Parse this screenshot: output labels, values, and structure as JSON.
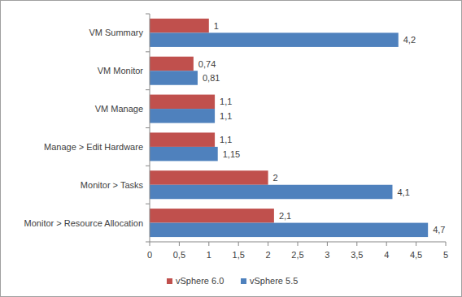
{
  "chart_data": {
    "type": "bar",
    "orientation": "horizontal",
    "categories": [
      "VM Summary",
      "VM Monitor",
      "VM Manage",
      "Manage > Edit Hardware",
      "Monitor > Tasks",
      "Monitor > Resource Allocation"
    ],
    "series": [
      {
        "name": "vSphere 6.0",
        "color": "#c0504d",
        "values": [
          1,
          0.74,
          1.1,
          1.1,
          2,
          2.1
        ],
        "value_labels": [
          "1",
          "0,74",
          "1,1",
          "1,1",
          "2",
          "2,1"
        ]
      },
      {
        "name": "vSphere 5.5",
        "color": "#4f81bd",
        "values": [
          4.2,
          0.81,
          1.1,
          1.15,
          4.1,
          4.7
        ],
        "value_labels": [
          "4,2",
          "0,81",
          "1,1",
          "1,15",
          "4,1",
          "4,7"
        ]
      }
    ],
    "xlim": [
      0,
      5
    ],
    "xticks": [
      0,
      {
        "value": 0.5,
        "label": "0,5"
      },
      1,
      {
        "value": 1.5,
        "label": "1,5"
      },
      2,
      {
        "value": 2.5,
        "label": "2,5"
      },
      3,
      {
        "value": 3.5,
        "label": "3,5"
      },
      4,
      {
        "value": 4.5,
        "label": "4,5"
      },
      5
    ],
    "grid": false,
    "data_labels": true,
    "legend": "bottom"
  }
}
